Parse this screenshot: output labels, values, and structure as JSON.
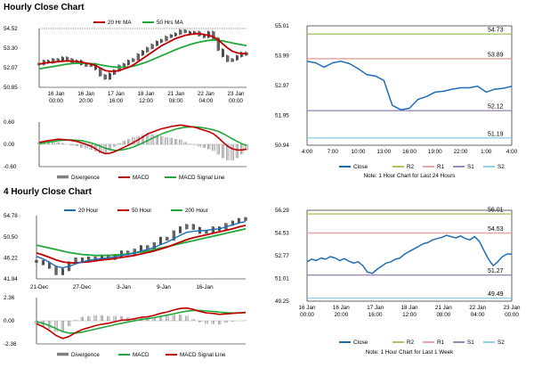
{
  "sections": [
    {
      "title": "Hourly Close Chart"
    },
    {
      "title": "4 Hourly Close Chart"
    }
  ],
  "colors": {
    "close": "#1F6DB5",
    "ma_short": "#C00000",
    "ma_long": "#22A83A",
    "ma_200": "#1F6DB5",
    "macd": "#C00000",
    "signal": "#22A83A",
    "divergence": "#7F7F7F",
    "R2": "#A9C46B",
    "R1": "#E8A6A0",
    "S1": "#9E8AB8",
    "S2": "#8ECFE0",
    "price_ohlc": "#000000"
  },
  "chart_data": [
    {
      "id": "hourly_price",
      "type": "line",
      "description_of_marks": "price bars with moving averages",
      "legend": [
        "20 Hr MA",
        "50 Hrs MA"
      ],
      "y_ticks": [
        "54.52",
        "53.30",
        "52.07",
        "50.85"
      ],
      "x_ticks": [
        [
          "16 Jan",
          "00:00"
        ],
        [
          "16 Jan",
          "20:00"
        ],
        [
          "17 Jan",
          "16:00"
        ],
        [
          "18 Jan",
          "12:00"
        ],
        [
          "21 Jan",
          "08:00"
        ],
        [
          "22 Jan",
          "04:00"
        ],
        [
          "23 Jan",
          "00:00"
        ]
      ],
      "ylim": [
        50.85,
        54.52
      ],
      "close": [
        52.3,
        52.5,
        52.4,
        52.6,
        52.5,
        52.7,
        52.6,
        52.4,
        52.5,
        52.3,
        52.2,
        52.3,
        52.0,
        51.6,
        51.4,
        51.7,
        51.9,
        52.2,
        52.3,
        52.5,
        52.6,
        52.9,
        53.1,
        53.3,
        53.5,
        53.7,
        53.8,
        54.0,
        54.1,
        54.2,
        54.4,
        54.3,
        54.2,
        54.3,
        54.1,
        54.0,
        54.3,
        53.9,
        53.2,
        52.8,
        52.5,
        52.6,
        52.8,
        53.0,
        52.9
      ],
      "series": [
        {
          "name": "20 Hr MA",
          "values": [
            52.3,
            52.35,
            52.4,
            52.42,
            52.45,
            52.48,
            52.5,
            52.48,
            52.46,
            52.42,
            52.35,
            52.3,
            52.2,
            52.05,
            51.9,
            51.85,
            51.85,
            51.9,
            52.0,
            52.1,
            52.25,
            52.45,
            52.65,
            52.85,
            53.05,
            53.25,
            53.45,
            53.6,
            53.75,
            53.9,
            54.0,
            54.1,
            54.15,
            54.2,
            54.2,
            54.15,
            54.1,
            54.0,
            53.8,
            53.55,
            53.3,
            53.1,
            53.0,
            52.95,
            52.95
          ]
        },
        {
          "name": "50 Hrs MA",
          "values": [
            52.0,
            52.05,
            52.1,
            52.15,
            52.2,
            52.25,
            52.3,
            52.33,
            52.35,
            52.36,
            52.35,
            52.33,
            52.3,
            52.25,
            52.2,
            52.15,
            52.12,
            52.1,
            52.1,
            52.12,
            52.18,
            52.25,
            52.35,
            52.45,
            52.57,
            52.7,
            52.83,
            52.95,
            53.08,
            53.2,
            53.32,
            53.42,
            53.52,
            53.6,
            53.67,
            53.73,
            53.78,
            53.8,
            53.78,
            53.74,
            53.68,
            53.62,
            53.56,
            53.5,
            53.45
          ]
        }
      ]
    },
    {
      "id": "hourly_macd",
      "type": "line",
      "legend": [
        "Divergence",
        "MACD",
        "MACD Signal Line"
      ],
      "y_ticks": [
        "0.60",
        "0.00",
        "-0.60"
      ],
      "ylim": [
        -0.6,
        0.6
      ],
      "series": [
        {
          "name": "MACD",
          "values": [
            0.05,
            0.08,
            0.1,
            0.12,
            0.14,
            0.13,
            0.12,
            0.1,
            0.08,
            0.04,
            0.0,
            -0.05,
            -0.12,
            -0.2,
            -0.25,
            -0.24,
            -0.2,
            -0.14,
            -0.08,
            -0.02,
            0.05,
            0.12,
            0.2,
            0.28,
            0.33,
            0.38,
            0.42,
            0.45,
            0.48,
            0.5,
            0.52,
            0.5,
            0.48,
            0.46,
            0.42,
            0.38,
            0.34,
            0.28,
            0.18,
            0.06,
            -0.05,
            -0.12,
            -0.15,
            -0.15,
            -0.13
          ]
        },
        {
          "name": "MACD Signal Line",
          "values": [
            0.02,
            0.04,
            0.06,
            0.08,
            0.1,
            0.11,
            0.12,
            0.12,
            0.11,
            0.1,
            0.07,
            0.04,
            0.0,
            -0.05,
            -0.1,
            -0.14,
            -0.16,
            -0.16,
            -0.14,
            -0.11,
            -0.07,
            -0.02,
            0.04,
            0.1,
            0.16,
            0.22,
            0.28,
            0.33,
            0.37,
            0.41,
            0.44,
            0.46,
            0.47,
            0.47,
            0.46,
            0.44,
            0.42,
            0.39,
            0.35,
            0.29,
            0.22,
            0.15,
            0.08,
            0.02,
            -0.03
          ]
        }
      ]
    },
    {
      "id": "hourly_levels",
      "type": "line",
      "legend": [
        "Close",
        "R2",
        "R1",
        "S1",
        "S2"
      ],
      "note": "Note: 1 Hour Chart for Last 24 Hours",
      "y_ticks": [
        "55.01",
        "53.99",
        "52.97",
        "51.95",
        "50.94"
      ],
      "x_ticks": [
        "4:00",
        "7:00",
        "10:00",
        "13:00",
        "16:00",
        "19:00",
        "22:00",
        "1:00",
        "4:00"
      ],
      "ylim": [
        50.94,
        55.01
      ],
      "levels": [
        {
          "name": "R2",
          "value": 54.73,
          "label": "54.73"
        },
        {
          "name": "R1",
          "value": 53.89,
          "label": "53.89"
        },
        {
          "name": "S1",
          "value": 52.12,
          "label": "52.12"
        },
        {
          "name": "S2",
          "value": 51.19,
          "label": "51.19"
        }
      ],
      "close": [
        53.8,
        53.75,
        53.6,
        53.75,
        53.8,
        53.72,
        53.55,
        53.35,
        53.3,
        53.15,
        52.3,
        52.15,
        52.2,
        52.5,
        52.6,
        52.75,
        52.78,
        52.85,
        52.9,
        52.9,
        52.95,
        52.75,
        52.85,
        52.88,
        52.95
      ]
    },
    {
      "id": "4hourly_price",
      "type": "line",
      "legend": [
        "20 Hour",
        "50 Hour",
        "200 Hour"
      ],
      "y_ticks": [
        "54.78",
        "50.50",
        "46.22",
        "41.94"
      ],
      "x_ticks": [
        "21-Dec",
        "27-Dec",
        "3-Jan",
        "9-Jan",
        "16-Jan"
      ],
      "ylim": [
        41.94,
        54.78
      ],
      "close": [
        45.5,
        45.0,
        44.3,
        43.0,
        43.8,
        45.2,
        46.0,
        45.6,
        46.2,
        46.0,
        46.6,
        46.1,
        46.7,
        47.4,
        47.0,
        47.8,
        48.5,
        48.1,
        49.1,
        50.2,
        50.0,
        51.5,
        52.3,
        52.8,
        52.2,
        51.4,
        51.6,
        52.3,
        52.0,
        53.0,
        53.5,
        54.0,
        54.2
      ],
      "series": [
        {
          "name": "20 Hour",
          "values": [
            46.5,
            46.0,
            45.3,
            44.5,
            44.2,
            44.5,
            45.0,
            45.4,
            45.7,
            45.9,
            46.1,
            46.2,
            46.4,
            46.7,
            46.9,
            47.2,
            47.6,
            47.9,
            48.3,
            48.9,
            49.4,
            50.1,
            50.8,
            51.4,
            51.6,
            51.7,
            51.8,
            52.0,
            52.1,
            52.5,
            52.9,
            53.3,
            53.6
          ]
        },
        {
          "name": "50 Hour",
          "values": [
            47.2,
            46.8,
            46.3,
            45.8,
            45.4,
            45.2,
            45.2,
            45.3,
            45.4,
            45.6,
            45.8,
            45.9,
            46.1,
            46.3,
            46.5,
            46.7,
            47.0,
            47.3,
            47.6,
            48.0,
            48.4,
            48.9,
            49.4,
            49.9,
            50.3,
            50.6,
            50.9,
            51.2,
            51.5,
            51.8,
            52.1,
            52.5,
            52.8
          ]
        },
        {
          "name": "200 Hour",
          "values": [
            48.8,
            48.5,
            48.2,
            47.9,
            47.6,
            47.3,
            47.1,
            46.9,
            46.8,
            46.7,
            46.7,
            46.7,
            46.8,
            46.9,
            47.0,
            47.2,
            47.4,
            47.6,
            47.9,
            48.2,
            48.5,
            48.8,
            49.1,
            49.4,
            49.7,
            50.0,
            50.3,
            50.6,
            50.9,
            51.2,
            51.5,
            51.8,
            52.1
          ]
        }
      ]
    },
    {
      "id": "4hourly_macd",
      "type": "line",
      "legend": [
        "Divergence",
        "MACD",
        "MACD Signal Line"
      ],
      "y_ticks": [
        "2.36",
        "0.00",
        "-2.36"
      ],
      "ylim": [
        -2.36,
        2.36
      ],
      "series": [
        {
          "name": "MACD",
          "values": [
            -0.3,
            -0.6,
            -1.0,
            -1.5,
            -1.8,
            -1.6,
            -1.2,
            -0.9,
            -0.7,
            -0.5,
            -0.35,
            -0.25,
            -0.1,
            0.05,
            0.1,
            0.2,
            0.35,
            0.4,
            0.55,
            0.75,
            0.9,
            1.1,
            1.25,
            1.3,
            1.15,
            0.95,
            0.8,
            0.75,
            0.65,
            0.7,
            0.75,
            0.8,
            0.85
          ]
        },
        {
          "name": "MACD Signal Line",
          "values": [
            -0.1,
            -0.25,
            -0.5,
            -0.8,
            -1.1,
            -1.25,
            -1.25,
            -1.15,
            -1.0,
            -0.85,
            -0.7,
            -0.55,
            -0.4,
            -0.25,
            -0.12,
            0.0,
            0.12,
            0.22,
            0.32,
            0.45,
            0.58,
            0.72,
            0.86,
            0.98,
            1.05,
            1.05,
            1.0,
            0.95,
            0.88,
            0.83,
            0.8,
            0.8,
            0.82
          ]
        }
      ]
    },
    {
      "id": "4hourly_levels",
      "type": "line",
      "legend": [
        "Close",
        "R2",
        "R1",
        "S1",
        "S2"
      ],
      "note": "Note: 1 Hour Chart for Last 1 Week",
      "y_ticks": [
        "56.29",
        "54.53",
        "52.77",
        "51.01",
        "49.25"
      ],
      "x_ticks": [
        [
          "16 Jan",
          "00:00"
        ],
        [
          "16 Jan",
          "20:00"
        ],
        [
          "17 Jan",
          "16:00"
        ],
        [
          "18 Jan",
          "12:00"
        ],
        [
          "21 Jan",
          "08:00"
        ],
        [
          "22 Jan",
          "04:00"
        ],
        [
          "23 Jan",
          "00:00"
        ]
      ],
      "ylim": [
        49.25,
        56.29
      ],
      "levels": [
        {
          "name": "R2",
          "value": 56.01,
          "label": "56.01"
        },
        {
          "name": "R1",
          "value": 54.53,
          "label": "54.53"
        },
        {
          "name": "S1",
          "value": 51.27,
          "label": "51.27"
        },
        {
          "name": "S2",
          "value": 49.49,
          "label": "49.49"
        }
      ],
      "close": [
        52.3,
        52.5,
        52.4,
        52.6,
        52.5,
        52.7,
        52.6,
        52.4,
        52.55,
        52.35,
        52.2,
        52.3,
        52.0,
        51.5,
        51.4,
        51.7,
        51.95,
        52.2,
        52.3,
        52.5,
        52.6,
        52.9,
        53.1,
        53.3,
        53.5,
        53.7,
        53.8,
        54.0,
        54.1,
        54.2,
        54.35,
        54.25,
        54.15,
        54.3,
        54.1,
        54.0,
        54.25,
        53.9,
        53.2,
        52.5,
        52.0,
        52.3,
        52.7,
        52.9,
        52.9
      ]
    }
  ]
}
